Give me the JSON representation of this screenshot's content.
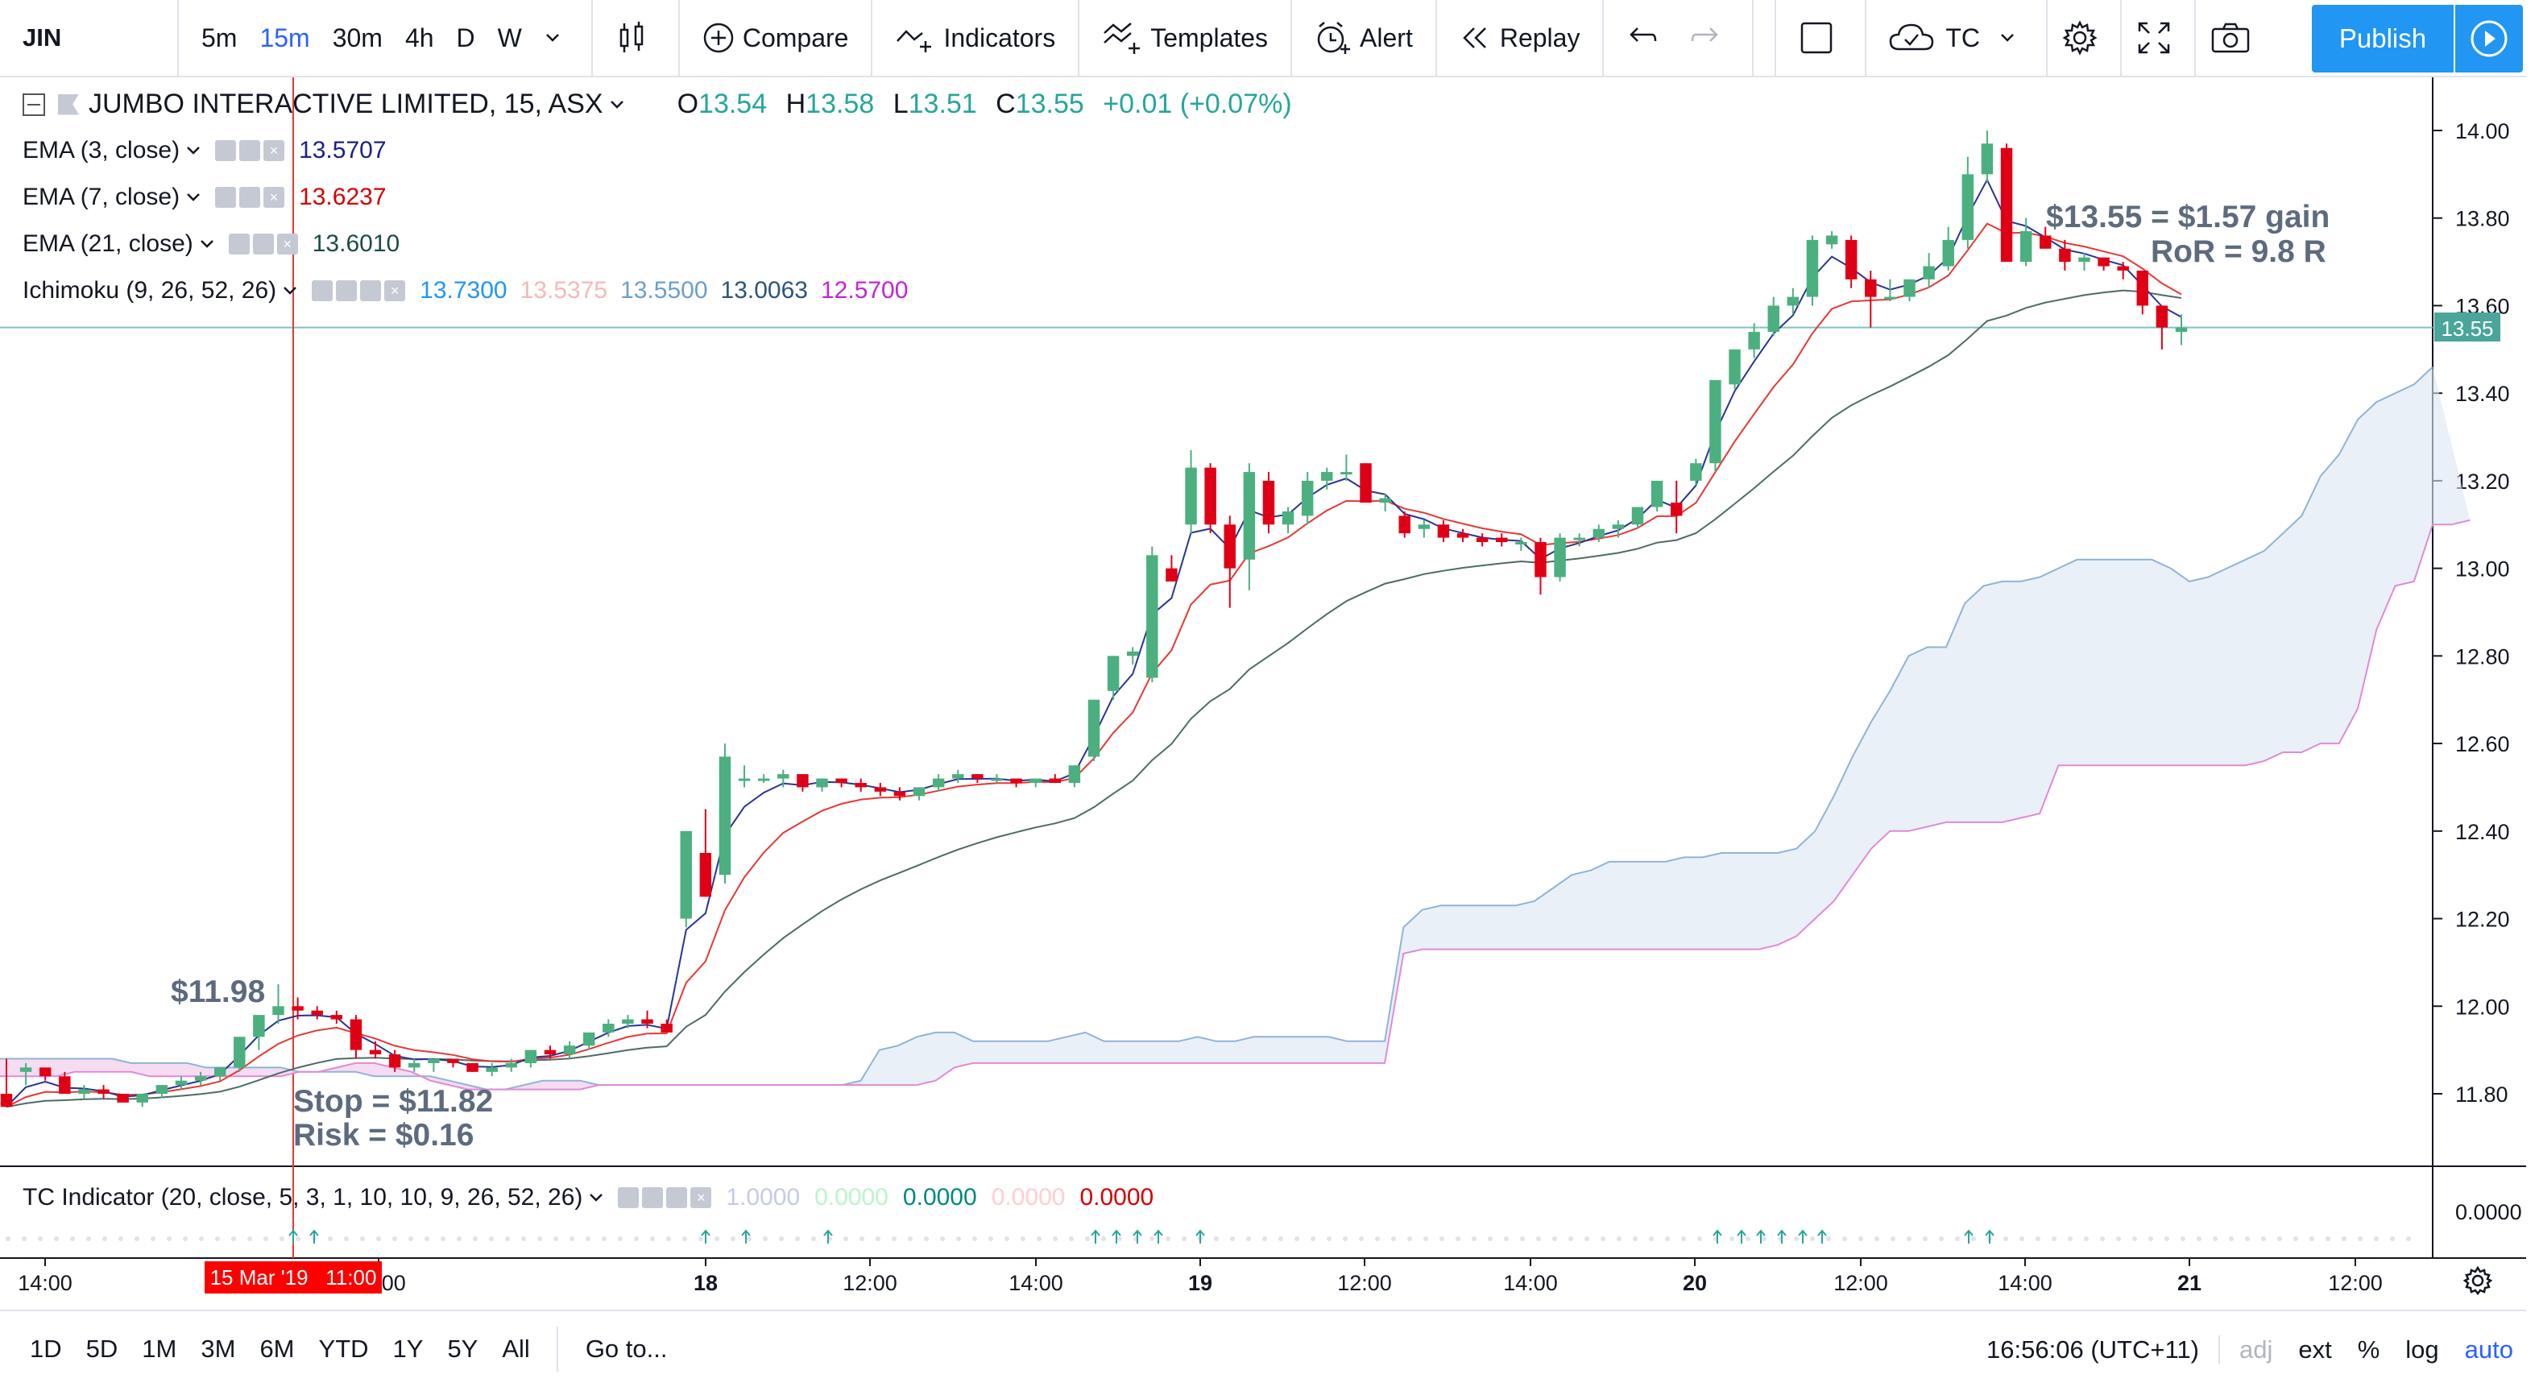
{
  "toolbar": {
    "symbol": "JIN",
    "intervals": [
      "5m",
      "15m",
      "30m",
      "4h",
      "D",
      "W"
    ],
    "active_interval": "15m",
    "compare_label": "Compare",
    "indicators_label": "Indicators",
    "templates_label": "Templates",
    "alert_label": "Alert",
    "replay_label": "Replay",
    "layout_label": "TC",
    "publish_label": "Publish"
  },
  "legend": {
    "title": "JUMBO INTERACTIVE LIMITED, 15, ASX",
    "o_label": "O",
    "o_value": "13.54",
    "h_label": "H",
    "h_value": "13.58",
    "l_label": "L",
    "l_value": "13.51",
    "c_label": "C",
    "c_value": "13.55",
    "change": "+0.01 (+0.07%)",
    "studies": [
      {
        "name": "EMA (3, close)",
        "values": [
          "13.5707"
        ],
        "colors": [
          "#1a237e"
        ]
      },
      {
        "name": "EMA (7, close)",
        "values": [
          "13.6237"
        ],
        "colors": [
          "#d50000"
        ]
      },
      {
        "name": "EMA (21, close)",
        "values": [
          "13.6010"
        ],
        "colors": [
          "#1b4d4a"
        ]
      },
      {
        "name": "Ichimoku (9, 26, 52, 26)",
        "values": [
          "13.7300",
          "13.5375",
          "13.5500",
          "13.0063",
          "12.5700"
        ],
        "colors": [
          "#2196f3",
          "#f4b8b8",
          "#6a9fd0",
          "#2a5580",
          "#c026d3"
        ]
      }
    ]
  },
  "annotations": {
    "entry": "$11.98",
    "stop": "Stop = $11.82",
    "risk": "Risk = $0.16",
    "gain": "$13.55 = $1.57 gain",
    "ror": "RoR = 9.8 R"
  },
  "price_tag": "13.55",
  "sub_pane": {
    "title": "TC Indicator (20, close, 5, 3, 1, 10, 10, 9, 26, 52, 26)",
    "values": [
      "1.0000",
      "0.0000",
      "0.0000",
      "0.0000",
      "0.0000"
    ],
    "colors": [
      "#c5cae9",
      "#b9f6ca",
      "#00897b",
      "#ffcdd2",
      "#d50000"
    ],
    "axis_label": "0.0000"
  },
  "time_axis": {
    "labels": [
      "14:00",
      "14:00",
      "18",
      "12:00",
      "14:00",
      "19",
      "12:00",
      "14:00",
      "20",
      "12:00",
      "14:00",
      "21",
      "12:00"
    ],
    "cursor_label": "15 Mar '19   11:00"
  },
  "bottom": {
    "ranges": [
      "1D",
      "5D",
      "1M",
      "3M",
      "6M",
      "YTD",
      "1Y",
      "5Y",
      "All"
    ],
    "goto_label": "Go to...",
    "clock": "16:56:06 (UTC+11)",
    "adj": "adj",
    "ext": "ext",
    "pct": "%",
    "log": "log",
    "auto": "auto"
  },
  "chart_data": {
    "type": "candlestick",
    "price_axis": {
      "ylim": [
        11.64,
        14.1
      ],
      "ticks": [
        "14.00",
        "13.80",
        "13.60",
        "13.40",
        "13.20",
        "13.00",
        "12.80",
        "12.60",
        "12.40",
        "12.20",
        "12.00",
        "11.80"
      ]
    },
    "candles": [
      [
        11.8,
        11.88,
        11.77,
        11.77
      ],
      [
        11.85,
        11.87,
        11.82,
        11.86
      ],
      [
        11.86,
        11.86,
        11.83,
        11.84
      ],
      [
        11.84,
        11.85,
        11.8,
        11.8
      ],
      [
        11.8,
        11.82,
        11.79,
        11.81
      ],
      [
        11.81,
        11.82,
        11.79,
        11.8
      ],
      [
        11.8,
        11.8,
        11.78,
        11.78
      ],
      [
        11.78,
        11.8,
        11.77,
        11.8
      ],
      [
        11.8,
        11.82,
        11.79,
        11.82
      ],
      [
        11.82,
        11.84,
        11.81,
        11.83
      ],
      [
        11.83,
        11.85,
        11.82,
        11.84
      ],
      [
        11.84,
        11.86,
        11.83,
        11.86
      ],
      [
        11.86,
        11.93,
        11.85,
        11.93
      ],
      [
        11.93,
        11.98,
        11.9,
        11.98
      ],
      [
        11.98,
        12.05,
        11.96,
        12.0
      ],
      [
        12.0,
        12.02,
        11.97,
        11.99
      ],
      [
        11.99,
        12.0,
        11.97,
        11.98
      ],
      [
        11.98,
        11.99,
        11.96,
        11.97
      ],
      [
        11.97,
        11.98,
        11.88,
        11.9
      ],
      [
        11.9,
        11.92,
        11.88,
        11.89
      ],
      [
        11.89,
        11.9,
        11.85,
        11.86
      ],
      [
        11.86,
        11.88,
        11.85,
        11.87
      ],
      [
        11.87,
        11.88,
        11.85,
        11.88
      ],
      [
        11.88,
        11.88,
        11.86,
        11.87
      ],
      [
        11.87,
        11.87,
        11.85,
        11.85
      ],
      [
        11.85,
        11.87,
        11.84,
        11.86
      ],
      [
        11.86,
        11.88,
        11.85,
        11.87
      ],
      [
        11.87,
        11.9,
        11.86,
        11.9
      ],
      [
        11.9,
        11.91,
        11.88,
        11.89
      ],
      [
        11.89,
        11.92,
        11.88,
        11.91
      ],
      [
        11.91,
        11.94,
        11.9,
        11.94
      ],
      [
        11.94,
        11.97,
        11.93,
        11.96
      ],
      [
        11.96,
        11.98,
        11.95,
        11.97
      ],
      [
        11.97,
        11.99,
        11.95,
        11.96
      ],
      [
        11.96,
        11.97,
        11.94,
        11.94
      ],
      [
        12.2,
        12.4,
        12.18,
        12.4
      ],
      [
        12.35,
        12.45,
        12.25,
        12.25
      ],
      [
        12.3,
        12.6,
        12.28,
        12.57
      ],
      [
        12.52,
        12.55,
        12.5,
        12.52
      ],
      [
        12.52,
        12.53,
        12.51,
        12.52
      ],
      [
        12.52,
        12.54,
        12.5,
        12.53
      ],
      [
        12.53,
        12.53,
        12.49,
        12.5
      ],
      [
        12.5,
        12.52,
        12.49,
        12.52
      ],
      [
        12.52,
        12.52,
        12.5,
        12.51
      ],
      [
        12.51,
        12.52,
        12.49,
        12.5
      ],
      [
        12.5,
        12.51,
        12.48,
        12.49
      ],
      [
        12.49,
        12.5,
        12.47,
        12.48
      ],
      [
        12.48,
        12.5,
        12.47,
        12.5
      ],
      [
        12.5,
        12.53,
        12.49,
        12.52
      ],
      [
        12.52,
        12.54,
        12.51,
        12.53
      ],
      [
        12.53,
        12.53,
        12.51,
        12.52
      ],
      [
        12.52,
        12.53,
        12.51,
        12.52
      ],
      [
        12.52,
        12.52,
        12.5,
        12.51
      ],
      [
        12.51,
        12.52,
        12.5,
        12.52
      ],
      [
        12.52,
        12.53,
        12.51,
        12.51
      ],
      [
        12.51,
        12.55,
        12.5,
        12.55
      ],
      [
        12.57,
        12.7,
        12.56,
        12.7
      ],
      [
        12.72,
        12.8,
        12.7,
        12.8
      ],
      [
        12.8,
        12.82,
        12.78,
        12.81
      ],
      [
        12.75,
        13.05,
        12.74,
        13.03
      ],
      [
        13.0,
        13.03,
        12.97,
        12.97
      ],
      [
        13.1,
        13.27,
        13.08,
        13.23
      ],
      [
        13.23,
        13.24,
        13.08,
        13.1
      ],
      [
        13.1,
        13.12,
        12.91,
        13.0
      ],
      [
        13.02,
        13.24,
        12.95,
        13.22
      ],
      [
        13.2,
        13.22,
        13.08,
        13.1
      ],
      [
        13.1,
        13.14,
        13.08,
        13.13
      ],
      [
        13.12,
        13.22,
        13.1,
        13.2
      ],
      [
        13.2,
        13.23,
        13.18,
        13.22
      ],
      [
        13.22,
        13.26,
        13.2,
        13.22
      ],
      [
        13.24,
        13.24,
        13.15,
        13.15
      ],
      [
        13.15,
        13.17,
        13.13,
        13.16
      ],
      [
        13.12,
        13.13,
        13.07,
        13.08
      ],
      [
        13.09,
        13.11,
        13.07,
        13.1
      ],
      [
        13.1,
        13.11,
        13.06,
        13.07
      ],
      [
        13.08,
        13.09,
        13.06,
        13.07
      ],
      [
        13.07,
        13.08,
        13.05,
        13.06
      ],
      [
        13.07,
        13.08,
        13.05,
        13.06
      ],
      [
        13.06,
        13.07,
        13.04,
        13.06
      ],
      [
        13.06,
        13.07,
        12.94,
        12.98
      ],
      [
        12.98,
        13.08,
        12.97,
        13.07
      ],
      [
        13.07,
        13.08,
        13.05,
        13.07
      ],
      [
        13.07,
        13.1,
        13.06,
        13.09
      ],
      [
        13.09,
        13.11,
        13.07,
        13.1
      ],
      [
        13.1,
        13.14,
        13.09,
        13.14
      ],
      [
        13.14,
        13.2,
        13.13,
        13.2
      ],
      [
        13.15,
        13.2,
        13.08,
        13.12
      ],
      [
        13.2,
        13.25,
        13.19,
        13.24
      ],
      [
        13.24,
        13.43,
        13.22,
        13.43
      ],
      [
        13.42,
        13.5,
        13.41,
        13.5
      ],
      [
        13.5,
        13.56,
        13.48,
        13.54
      ],
      [
        13.54,
        13.62,
        13.53,
        13.6
      ],
      [
        13.6,
        13.64,
        13.58,
        13.62
      ],
      [
        13.62,
        13.76,
        13.6,
        13.75
      ],
      [
        13.74,
        13.77,
        13.73,
        13.76
      ],
      [
        13.75,
        13.76,
        13.64,
        13.66
      ],
      [
        13.66,
        13.68,
        13.55,
        13.62
      ],
      [
        13.62,
        13.66,
        13.61,
        13.62
      ],
      [
        13.62,
        13.66,
        13.61,
        13.66
      ],
      [
        13.66,
        13.72,
        13.64,
        13.69
      ],
      [
        13.69,
        13.78,
        13.68,
        13.75
      ],
      [
        13.75,
        13.94,
        13.73,
        13.9
      ],
      [
        13.9,
        14.0,
        13.88,
        13.97
      ],
      [
        13.96,
        13.97,
        13.7,
        13.7
      ],
      [
        13.7,
        13.8,
        13.69,
        13.77
      ],
      [
        13.76,
        13.78,
        13.73,
        13.73
      ],
      [
        13.73,
        13.75,
        13.68,
        13.7
      ],
      [
        13.7,
        13.72,
        13.68,
        13.71
      ],
      [
        13.71,
        13.71,
        13.68,
        13.69
      ],
      [
        13.69,
        13.7,
        13.66,
        13.68
      ],
      [
        13.68,
        13.68,
        13.58,
        13.6
      ],
      [
        13.6,
        13.6,
        13.5,
        13.55
      ],
      [
        13.54,
        13.58,
        13.51,
        13.55
      ]
    ],
    "cloud_upper": [
      11.88,
      11.88,
      11.88,
      11.88,
      11.88,
      11.88,
      11.88,
      11.87,
      11.87,
      11.87,
      11.87,
      11.86,
      11.86,
      11.86,
      11.86,
      11.86,
      11.85,
      11.85,
      11.85,
      11.85,
      11.84,
      11.84,
      11.84,
      11.84,
      11.83,
      11.82,
      11.81,
      11.81,
      11.82,
      11.83,
      11.83,
      11.83,
      11.82,
      11.82,
      11.82,
      11.82,
      11.82,
      11.82,
      11.82,
      11.82,
      11.82,
      11.82,
      11.82,
      11.82,
      11.82,
      11.82,
      11.83,
      11.9,
      11.91,
      11.93,
      11.94,
      11.94,
      11.92,
      11.92,
      11.92,
      11.92,
      11.92,
      11.93,
      11.94,
      11.92,
      11.92,
      11.92,
      11.92,
      11.92,
      11.93,
      11.92,
      11.92,
      11.93,
      11.93,
      11.93,
      11.93,
      11.93,
      11.92,
      11.92,
      11.92,
      12.18,
      12.22,
      12.23,
      12.23,
      12.23,
      12.23,
      12.23,
      12.24,
      12.27,
      12.3,
      12.31,
      12.33,
      12.33,
      12.33,
      12.33,
      12.34,
      12.34,
      12.35,
      12.35,
      12.35,
      12.35,
      12.36,
      12.4,
      12.48,
      12.57,
      12.65,
      12.72,
      12.8,
      12.82,
      12.82,
      12.92,
      12.96,
      12.97,
      12.97,
      12.98,
      13.0,
      13.02,
      13.02,
      13.02,
      13.02,
      13.02,
      13.0,
      12.97,
      12.98,
      13.0,
      13.02,
      13.04,
      13.08,
      13.12,
      13.21,
      13.26,
      13.34,
      13.38,
      13.4,
      13.42,
      13.46
    ],
    "cloud_lower": [
      11.84,
      11.84,
      11.84,
      11.84,
      11.85,
      11.85,
      11.85,
      11.85,
      11.84,
      11.84,
      11.84,
      11.84,
      11.84,
      11.84,
      11.84,
      11.84,
      11.85,
      11.85,
      11.86,
      11.87,
      11.87,
      11.86,
      11.85,
      11.83,
      11.82,
      11.81,
      11.81,
      11.81,
      11.81,
      11.81,
      11.81,
      11.81,
      11.82,
      11.82,
      11.82,
      11.82,
      11.82,
      11.82,
      11.82,
      11.82,
      11.82,
      11.82,
      11.82,
      11.82,
      11.82,
      11.82,
      11.82,
      11.82,
      11.82,
      11.82,
      11.83,
      11.86,
      11.87,
      11.87,
      11.87,
      11.87,
      11.87,
      11.87,
      11.87,
      11.87,
      11.87,
      11.87,
      11.87,
      11.87,
      11.87,
      11.87,
      11.87,
      11.87,
      11.87,
      11.87,
      11.87,
      11.87,
      11.87,
      11.87,
      11.87,
      12.12,
      12.13,
      12.13,
      12.13,
      12.13,
      12.13,
      12.13,
      12.13,
      12.13,
      12.13,
      12.13,
      12.13,
      12.13,
      12.13,
      12.13,
      12.13,
      12.13,
      12.13,
      12.13,
      12.13,
      12.14,
      12.16,
      12.2,
      12.24,
      12.3,
      12.36,
      12.4,
      12.4,
      12.41,
      12.42,
      12.42,
      12.42,
      12.42,
      12.43,
      12.44,
      12.55,
      12.55,
      12.55,
      12.55,
      12.55,
      12.55,
      12.55,
      12.55,
      12.55,
      12.55,
      12.55,
      12.56,
      12.58,
      12.58,
      12.6,
      12.6,
      12.68,
      12.86,
      12.96,
      12.97,
      13.1,
      13.1,
      13.11
    ]
  }
}
